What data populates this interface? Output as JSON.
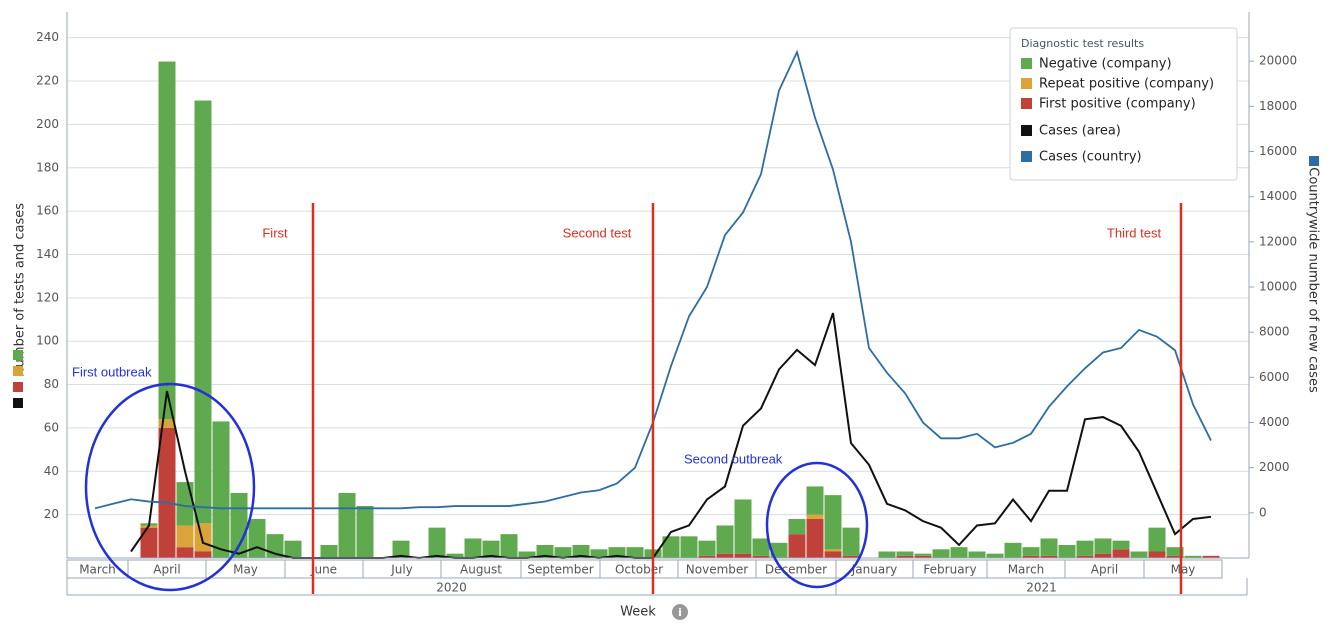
{
  "chart_data": {
    "type": "bar",
    "stacked": true,
    "x_label": "Week",
    "y_label": "Number of tests and cases",
    "y2_label": "Countrywide number of new cases",
    "categories": [
      null,
      null,
      null,
      null,
      null,
      null,
      null,
      null,
      null,
      null,
      null,
      null,
      null,
      null,
      null,
      null,
      null,
      null,
      null,
      null,
      null,
      null,
      null,
      null,
      null,
      null,
      null,
      null,
      null,
      null,
      null,
      null,
      null,
      null,
      null,
      null,
      null,
      null,
      null,
      null,
      null,
      null,
      null,
      null,
      null,
      null,
      null,
      null,
      null,
      null,
      null,
      null,
      null,
      null,
      null,
      null,
      null,
      null,
      null,
      null,
      null,
      null,
      null
    ],
    "months": [
      "March",
      "April",
      "May",
      "June",
      "July",
      "August",
      "September",
      "October",
      "November",
      "December",
      "January",
      "February",
      "March",
      "April",
      "May"
    ],
    "years": [
      "2020",
      "2021"
    ],
    "legend_title": "Diagnostic test results",
    "legend_position": "upper right",
    "grid": true,
    "ylim": [
      0,
      250
    ],
    "yticks": [
      20,
      40,
      60,
      80,
      100,
      120,
      140,
      160,
      180,
      200,
      220,
      240
    ],
    "y2lim": [
      -2000,
      22000
    ],
    "y2ticks": [
      0,
      2000,
      4000,
      6000,
      8000,
      10000,
      12000,
      14000,
      16000,
      18000,
      20000
    ],
    "annotations": [
      {
        "text": "First",
        "color": "#d7301f"
      },
      {
        "text": "Second test",
        "color": "#d7301f"
      },
      {
        "text": "Third test",
        "color": "#d7301f"
      },
      {
        "text": "First outbreak",
        "color": "#2430d8"
      },
      {
        "text": "Second outbreak",
        "color": "#2430d8"
      }
    ],
    "series": [
      {
        "name": "First positive (company)",
        "color": "#c0413a",
        "kind": "bar",
        "values": [
          null,
          null,
          null,
          14,
          60,
          5,
          3,
          0,
          0,
          0,
          0,
          0,
          0,
          0,
          0,
          0,
          0,
          0,
          0,
          0,
          0,
          0,
          0,
          0,
          0,
          0,
          0,
          0,
          0,
          0,
          0,
          0,
          0,
          0,
          1,
          2,
          2,
          1,
          0,
          11,
          18,
          3,
          1,
          0,
          0,
          1,
          1,
          0,
          0,
          0,
          0,
          0,
          1,
          1,
          0,
          1,
          2,
          4,
          0,
          3,
          1,
          0,
          1
        ]
      },
      {
        "name": "Repeat positive (company)",
        "color": "#d9a43a",
        "kind": "bar",
        "values": [
          null,
          null,
          null,
          1,
          4,
          10,
          13,
          0,
          0,
          0,
          0,
          0,
          0,
          0,
          0,
          0,
          0,
          0,
          0,
          0,
          0,
          0,
          0,
          0,
          0,
          0,
          0,
          0,
          0,
          0,
          0,
          0,
          0,
          0,
          0,
          0,
          0,
          0,
          0,
          0,
          2,
          1,
          0,
          0,
          0,
          0,
          0,
          0,
          0,
          0,
          0,
          0,
          0,
          0,
          0,
          0,
          0,
          0,
          0,
          0,
          0,
          0,
          0
        ]
      },
      {
        "name": "Negative (company)",
        "color": "#5fa94e",
        "kind": "bar",
        "values": [
          null,
          null,
          null,
          1,
          165,
          20,
          195,
          63,
          30,
          18,
          11,
          8,
          0,
          6,
          30,
          24,
          0,
          8,
          0,
          14,
          2,
          9,
          8,
          11,
          3,
          6,
          5,
          6,
          4,
          5,
          5,
          4,
          10,
          10,
          7,
          13,
          25,
          8,
          7,
          7,
          13,
          25,
          13,
          0,
          3,
          2,
          1,
          4,
          5,
          3,
          2,
          7,
          4,
          8,
          6,
          7,
          7,
          4,
          3,
          11,
          4,
          1,
          0
        ]
      },
      {
        "name": "Cases (area)",
        "color": "#111111",
        "kind": "line",
        "values": [
          null,
          null,
          3,
          15,
          77,
          40,
          7,
          4,
          2,
          5,
          2,
          0,
          0,
          0,
          0,
          0,
          0,
          1,
          0,
          1,
          0,
          0,
          1,
          0,
          0,
          1,
          0,
          1,
          0,
          1,
          0,
          0,
          12,
          15,
          27,
          33,
          61,
          69,
          87,
          96,
          89,
          113,
          53,
          43,
          25,
          22,
          17,
          14,
          6,
          15,
          16,
          27,
          17,
          31,
          31,
          64,
          65,
          61,
          49,
          30,
          11,
          18,
          19
        ]
      },
      {
        "name": "Cases (country)",
        "color": "#2e6da4",
        "kind": "line",
        "axis": "y2",
        "values": [
          200,
          400,
          600,
          500,
          450,
          300,
          250,
          200,
          200,
          200,
          200,
          200,
          200,
          200,
          200,
          200,
          200,
          200,
          250,
          250,
          300,
          300,
          300,
          300,
          400,
          500,
          700,
          900,
          1000,
          1300,
          2000,
          4000,
          6500,
          8700,
          10000,
          12300,
          13300,
          15000,
          18700,
          20400,
          17500,
          15200,
          12000,
          7300,
          6200,
          5300,
          4000,
          3300,
          3300,
          3500,
          2900,
          3100,
          3500,
          4700,
          5600,
          6400,
          7100,
          7300,
          8100,
          7800,
          7200,
          4800,
          3200
        ]
      }
    ]
  }
}
